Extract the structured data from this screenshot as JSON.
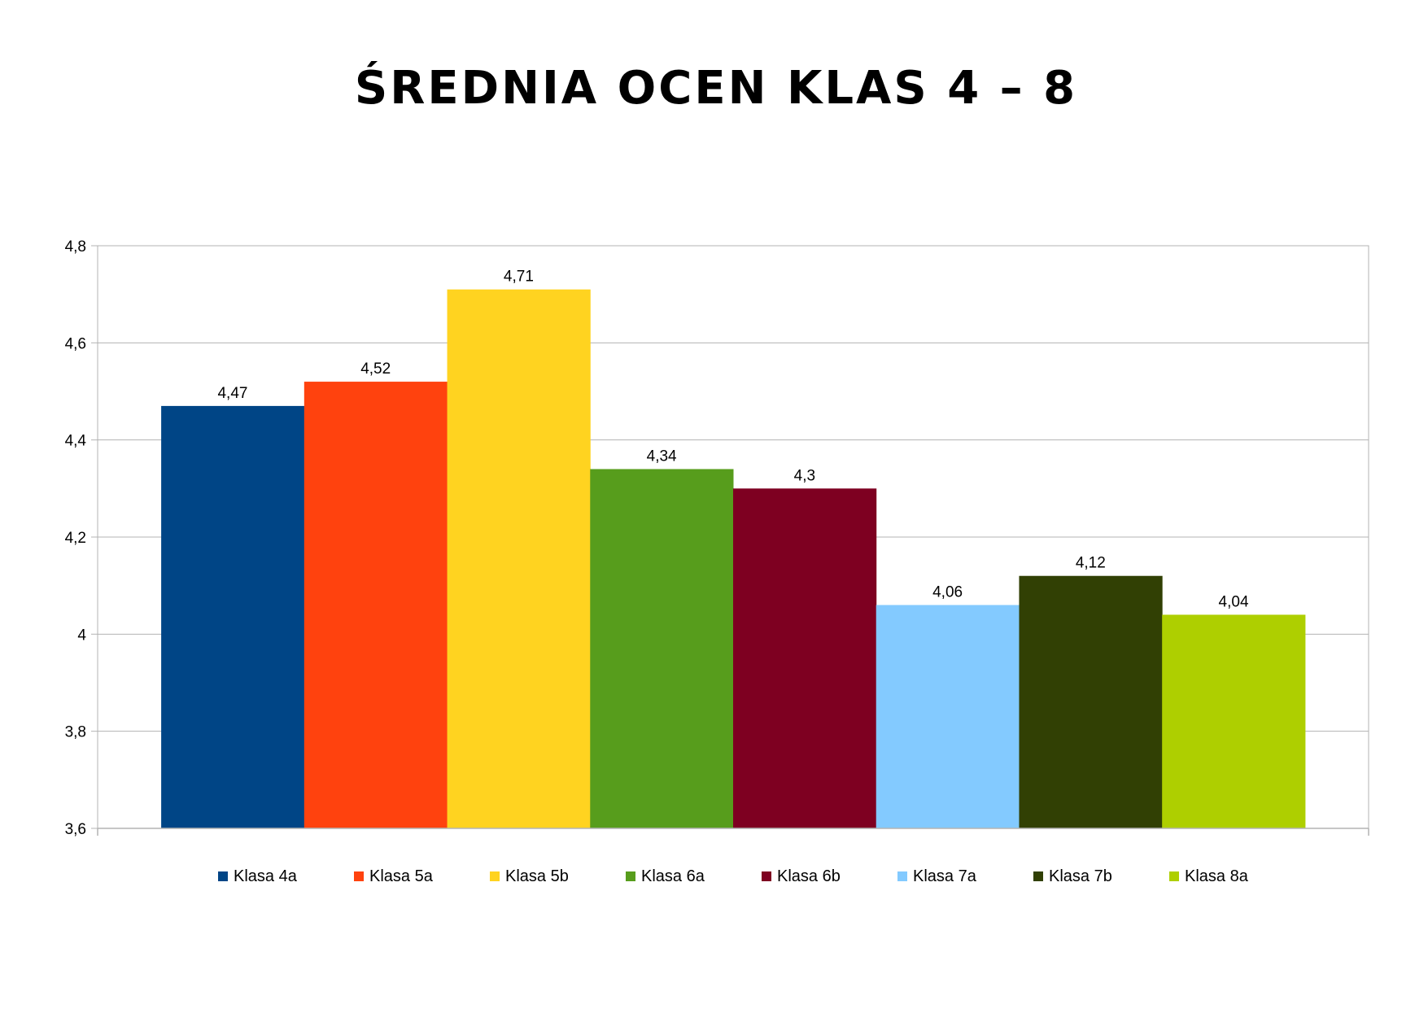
{
  "chart_data": {
    "type": "bar",
    "title": "ŚREDNIA OCEN KLAS 4 – 8",
    "xlabel": "",
    "ylabel": "",
    "ylim": [
      3.6,
      4.8
    ],
    "yticks": [
      3.6,
      3.8,
      4.0,
      4.2,
      4.4,
      4.6,
      4.8
    ],
    "ytick_labels": [
      "3,6",
      "3,8",
      "4",
      "4,2",
      "4,4",
      "4,6",
      "4,8"
    ],
    "grid": true,
    "legend_position": "bottom",
    "series": [
      {
        "name": "Klasa 4a",
        "value": 4.47,
        "label": "4,47",
        "color": "#004586"
      },
      {
        "name": "Klasa 5a",
        "value": 4.52,
        "label": "4,52",
        "color": "#ff420e"
      },
      {
        "name": "Klasa 5b",
        "value": 4.71,
        "label": "4,71",
        "color": "#ffd320"
      },
      {
        "name": "Klasa 6a",
        "value": 4.34,
        "label": "4,34",
        "color": "#579d1c"
      },
      {
        "name": "Klasa 6b",
        "value": 4.3,
        "label": "4,3",
        "color": "#7e0021"
      },
      {
        "name": "Klasa 7a",
        "value": 4.06,
        "label": "4,06",
        "color": "#83caff"
      },
      {
        "name": "Klasa 7b",
        "value": 4.12,
        "label": "4,12",
        "color": "#314004"
      },
      {
        "name": "Klasa 8a",
        "value": 4.04,
        "label": "4,04",
        "color": "#aecf00"
      }
    ]
  }
}
